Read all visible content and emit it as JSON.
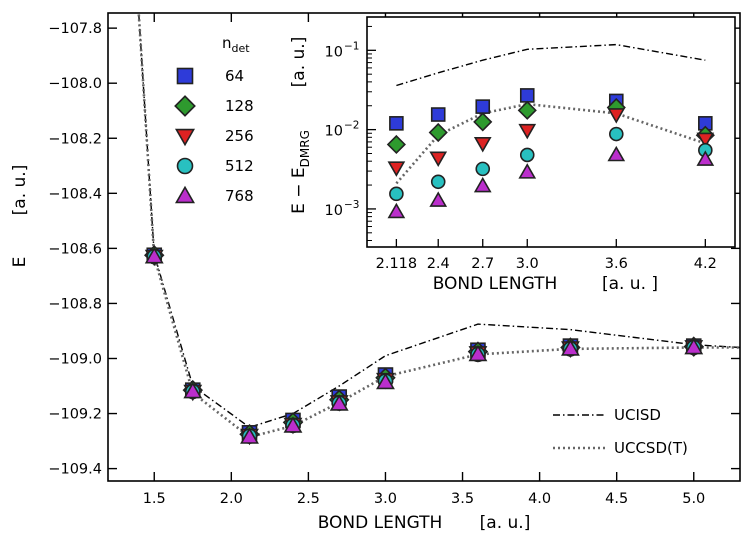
{
  "chart_data": [
    {
      "type": "line",
      "role": "main",
      "xlabel": "BOND LENGTH",
      "xunit": "[a. u.]",
      "ylabel": "E",
      "yunit": "[a. u.]",
      "xlim": [
        1.2,
        5.3
      ],
      "ylim": [
        -109.445,
        -107.745
      ],
      "xticks": [
        1.5,
        2.0,
        2.5,
        3.0,
        3.5,
        4.0,
        4.5,
        5.0
      ],
      "xtick_labels": [
        "1.5",
        "2.0",
        "2.5",
        "3.0",
        "3.5",
        "4.0",
        "4.5",
        "5.0"
      ],
      "yticks": [
        -109.4,
        -109.2,
        -109.0,
        -108.8,
        -108.6,
        -108.4,
        -108.2,
        -108.0,
        -107.8
      ],
      "ytick_labels": [
        "−109.4",
        "−109.2",
        "−109.0",
        "−108.8",
        "−108.6",
        "−108.4",
        "−108.2",
        "−108.0",
        "−107.8"
      ],
      "x": [
        1.5,
        1.75,
        2.118,
        2.4,
        2.7,
        3.0,
        3.6,
        4.2,
        5.0
      ],
      "lines": [
        {
          "name": "UCISD",
          "style": "dashdot",
          "x": [
            1.4,
            1.5,
            1.75,
            2.118,
            2.4,
            2.7,
            3.0,
            3.6,
            4.2,
            5.0,
            5.3
          ],
          "values": [
            -107.75,
            -108.62,
            -109.1,
            -109.25,
            -109.2,
            -109.1,
            -108.99,
            -108.875,
            -108.895,
            -108.95,
            -108.96
          ]
        },
        {
          "name": "UCCSD(T)",
          "style": "dotted",
          "x": [
            1.4,
            1.5,
            1.75,
            2.118,
            2.4,
            2.7,
            3.0,
            3.6,
            4.2,
            5.0,
            5.3
          ],
          "values": [
            -107.75,
            -108.63,
            -109.125,
            -109.285,
            -109.245,
            -109.16,
            -109.065,
            -108.985,
            -108.965,
            -108.96,
            -108.96
          ]
        }
      ],
      "series": [
        {
          "name": "64",
          "marker": "square",
          "color": "#2e3bd9",
          "values": [
            -108.625,
            -109.115,
            -109.27,
            -109.225,
            -109.14,
            -109.06,
            -108.97,
            -108.955,
            -108.955
          ]
        },
        {
          "name": "128",
          "marker": "diamond",
          "color": "#2e9a2e",
          "values": [
            -108.625,
            -109.115,
            -109.275,
            -109.232,
            -109.15,
            -109.07,
            -108.975,
            -108.96,
            -108.957
          ]
        },
        {
          "name": "256",
          "marker": "triangle-down",
          "color": "#dd2222",
          "values": [
            -108.63,
            -109.12,
            -109.28,
            -109.24,
            -109.158,
            -109.077,
            -108.98,
            -108.962,
            -108.958
          ]
        },
        {
          "name": "512",
          "marker": "circle",
          "color": "#28c0c0",
          "values": [
            -108.63,
            -109.12,
            -109.282,
            -109.243,
            -109.162,
            -109.082,
            -108.985,
            -108.965,
            -108.96
          ]
        },
        {
          "name": "768",
          "marker": "triangle-up",
          "color": "#bb2ecc",
          "values": [
            -108.63,
            -109.12,
            -109.285,
            -109.245,
            -109.165,
            -109.087,
            -108.985,
            -108.965,
            -108.96
          ]
        }
      ],
      "legend_title": "n",
      "legend_title_sub": "det",
      "legend_position": "top-left",
      "line_legend_position": "bottom-right"
    },
    {
      "type": "scatter",
      "role": "inset",
      "xlabel": "BOND LENGTH",
      "xunit": "[a. u. ]",
      "ylabel_main": "E − E",
      "ylabel_sub": "DMRG",
      "yunit": "[a. u.]",
      "yscale": "log",
      "xlim": [
        1.92,
        4.4
      ],
      "ylim_log10": [
        -3.48,
        -0.58
      ],
      "xticks": [
        2.118,
        2.4,
        2.7,
        3.0,
        3.6,
        4.2
      ],
      "xtick_labels": [
        "2.118",
        "2.4",
        "2.7",
        "3.0",
        "3.6",
        "4.2"
      ],
      "yticks_log10": [
        -3,
        -2,
        -1
      ],
      "ytick_base": "10",
      "ytick_exps": [
        "−3",
        "−2",
        "−1"
      ],
      "x": [
        2.118,
        2.4,
        2.7,
        3.0,
        3.6,
        4.2
      ],
      "lines": [
        {
          "name": "UCISD",
          "style": "dashdot",
          "values": [
            0.036,
            0.052,
            0.075,
            0.103,
            0.118,
            0.075
          ]
        },
        {
          "name": "UCCSD(T)",
          "style": "dotted",
          "values": [
            0.0021,
            0.0085,
            0.016,
            0.021,
            0.016,
            0.0067
          ]
        }
      ],
      "series": [
        {
          "name": "64",
          "values": [
            0.012,
            0.0155,
            0.0195,
            0.027,
            0.023,
            0.012
          ]
        },
        {
          "name": "128",
          "values": [
            0.0065,
            0.0092,
            0.0125,
            0.0175,
            0.019,
            0.0085
          ]
        },
        {
          "name": "256",
          "values": [
            0.0033,
            0.0044,
            0.0067,
            0.0098,
            0.0155,
            0.0076
          ]
        },
        {
          "name": "512",
          "values": [
            0.00155,
            0.0022,
            0.0032,
            0.0048,
            0.0088,
            0.0055
          ]
        },
        {
          "name": "768",
          "values": [
            0.00092,
            0.00128,
            0.00195,
            0.0029,
            0.0048,
            0.0042
          ]
        }
      ]
    }
  ]
}
